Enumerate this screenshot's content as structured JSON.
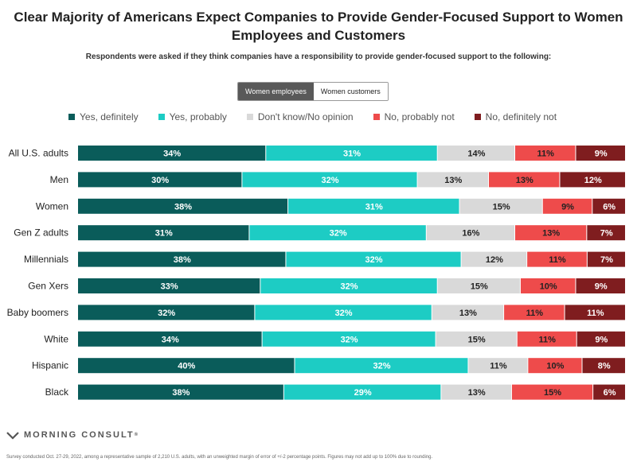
{
  "chart_data": {
    "type": "bar",
    "orientation": "horizontal",
    "stacked": true,
    "title": "Clear Majority of Americans Expect Companies to Provide Gender-Focused Support to Women Employees and Customers",
    "subtitle": "Respondents were asked if they think companies have a responsibility to provide gender-focused support to the following:",
    "categories": [
      "All U.S. adults",
      "Men",
      "Women",
      "Gen Z adults",
      "Millennials",
      "Gen Xers",
      "Baby boomers",
      "White",
      "Hispanic",
      "Black"
    ],
    "series": [
      {
        "name": "Yes, definitely",
        "color": "#0a5c5a",
        "values": [
          34,
          30,
          38,
          31,
          38,
          33,
          32,
          34,
          40,
          38
        ]
      },
      {
        "name": "Yes, probably",
        "color": "#1dccc4",
        "values": [
          31,
          32,
          31,
          32,
          32,
          32,
          32,
          32,
          32,
          29
        ]
      },
      {
        "name": "Don't know/No opinion",
        "color": "#d9d9d9",
        "values": [
          14,
          13,
          15,
          16,
          12,
          15,
          13,
          15,
          11,
          13
        ]
      },
      {
        "name": "No, probably not",
        "color": "#ee4b4b",
        "values": [
          11,
          13,
          9,
          13,
          11,
          10,
          11,
          11,
          10,
          15
        ]
      },
      {
        "name": "No, definitely not",
        "color": "#7f1d1f",
        "values": [
          9,
          12,
          6,
          7,
          7,
          9,
          11,
          9,
          8,
          6
        ]
      }
    ],
    "value_suffix": "%",
    "legend_position": "top"
  },
  "toggle": {
    "options": [
      "Women employees",
      "Women customers"
    ],
    "selected": "Women employees"
  },
  "brand": {
    "name": "MORNING CONSULT",
    "registered": "®"
  },
  "footnote": "Survey conducted Oct. 27-29, 2022, among a representative sample of 2,210 U.S. adults, with an unweighted margin of error of +/-2 percentage points. Figures may not add up to 100% due to rounding."
}
